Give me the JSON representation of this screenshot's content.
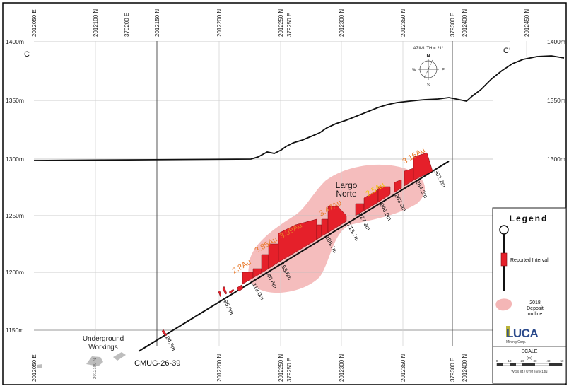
{
  "section": {
    "label_left": "C",
    "label_right": "C′",
    "elevations": [
      "1400m",
      "1350m",
      "1300m",
      "1250m",
      "1200m",
      "1150m"
    ],
    "top_ticks": [
      "2012050 E",
      "2012100 N",
      "379200 E",
      "2012150 N",
      "2012200 N",
      "2012250 N",
      "379250 E",
      "2012300 N",
      "2012350 N",
      "379300 E",
      "2012400 N",
      "2012450 N"
    ],
    "bottom_ticks": [
      "2012050 E",
      "2012100 N",
      "2012200 N",
      "2012250 N",
      "379250 E",
      "2012300 N",
      "2012350 N",
      "379300 E",
      "2012400 N"
    ]
  },
  "compass": {
    "azimuth": "AZIMUTH = 21°",
    "n": "N",
    "s": "S",
    "e": "E",
    "w": "W"
  },
  "drillhole": {
    "name": "CMUG-26-39",
    "depths": [
      "24.3m",
      "85.0m",
      "113.0m",
      "140.6m",
      "153.6m",
      "188.7m",
      "213.7m",
      "227.3m",
      "246.0m",
      "263.0m",
      "284.2m",
      "302.2m"
    ],
    "grades": [
      "2.8Au",
      "3.85Au",
      "3.99Au",
      "3.47Au",
      "2.5Au",
      "3.16Au"
    ]
  },
  "zone": {
    "label_line1": "Largo",
    "label_line2": "Norte"
  },
  "workings": {
    "line1": "Underground",
    "line2": "Workings",
    "sub": "2012100 N"
  },
  "legend": {
    "title": "Legend",
    "interval": "Reported Interval",
    "deposit_year": "2018",
    "deposit_line2": "Deposit",
    "deposit_line3": "outline",
    "logo": "LUCA",
    "logo_sub": "Mining Corp.",
    "scale": "SCALE",
    "scale_unit": "(m)",
    "scale_ticks": [
      "0",
      "10",
      "20",
      "30",
      "40",
      "50"
    ],
    "projection": "WGS 84 / UTM zone 14N"
  },
  "colors": {
    "interval": "#e5202a",
    "grade": "#e8792a",
    "deposit": "#f4b6b6",
    "grid": "#cfcfcf"
  }
}
